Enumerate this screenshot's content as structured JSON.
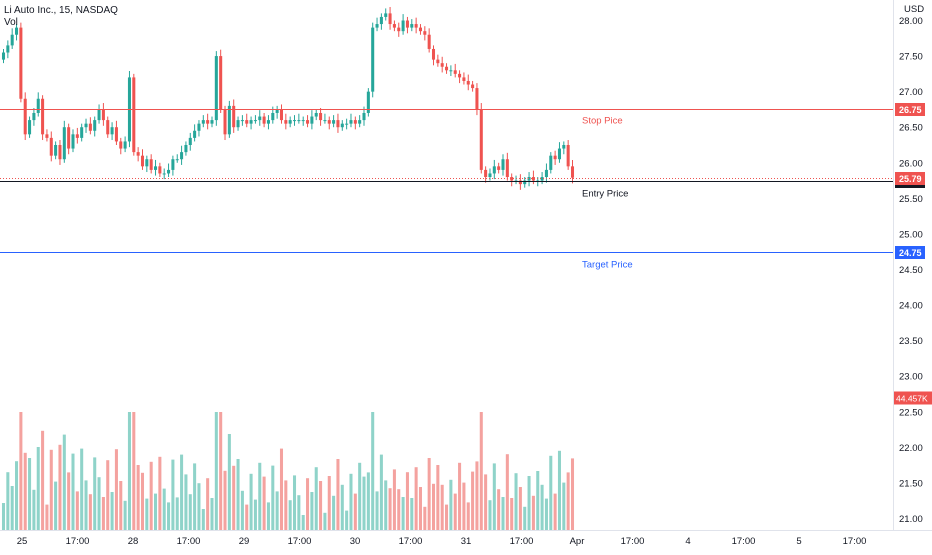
{
  "header": {
    "title": "Li Auto Inc., 15, NASDAQ",
    "vol_label": "Vol",
    "currency": "USD"
  },
  "colors": {
    "up": "#26a69a",
    "down": "#ef5350",
    "stop": "#ef5350",
    "entry": "#131722",
    "target": "#2962ff",
    "vol_up": "#8fd3c9",
    "vol_down": "#f4a29f",
    "axis_text": "#131722",
    "label_bg_dark": "#131722"
  },
  "chart_data": {
    "type": "candlestick",
    "title": "Li Auto Inc., 15, NASDAQ",
    "ylim": [
      20.9,
      28.15
    ],
    "y_ticks": [
      "28.00",
      "27.50",
      "27.00",
      "26.50",
      "26.00",
      "25.50",
      "25.00",
      "24.50",
      "24.00",
      "23.50",
      "23.00",
      "22.50",
      "22.00",
      "21.50",
      "21.00"
    ],
    "x_ticks": [
      "25",
      "17:00",
      "28",
      "17:00",
      "29",
      "17:00",
      "30",
      "17:00",
      "31",
      "17:00",
      "Apr",
      "17:00",
      "4",
      "17:00",
      "5",
      "17:00"
    ],
    "levels": [
      {
        "name": "Stop Pice",
        "value": 26.75,
        "label": "26.75"
      },
      {
        "name": "Entry Price",
        "value": 25.75,
        "label": "25.75"
      },
      {
        "name": "Target Price",
        "value": 24.75,
        "label": "24.75"
      }
    ],
    "last_price": {
      "value": 25.79,
      "label": "25.79"
    },
    "last_volume_label": "44.457K",
    "closes": [
      27.55,
      27.65,
      27.8,
      27.9,
      26.9,
      26.4,
      26.6,
      26.7,
      26.9,
      26.4,
      26.35,
      26.1,
      26.25,
      26.05,
      26.5,
      26.2,
      26.4,
      26.35,
      26.5,
      26.55,
      26.45,
      26.6,
      26.75,
      26.6,
      26.4,
      26.5,
      26.3,
      26.2,
      26.3,
      27.2,
      26.15,
      26.1,
      25.95,
      26.05,
      25.9,
      25.95,
      25.85,
      25.85,
      25.9,
      26.05,
      26.05,
      26.15,
      26.25,
      26.35,
      26.45,
      26.55,
      26.6,
      26.55,
      26.6,
      27.5,
      26.75,
      26.4,
      26.8,
      26.5,
      26.6,
      26.6,
      26.55,
      26.6,
      26.6,
      26.65,
      26.55,
      26.6,
      26.7,
      26.75,
      26.6,
      26.55,
      26.6,
      26.6,
      26.6,
      26.6,
      26.55,
      26.65,
      26.7,
      26.6,
      26.6,
      26.55,
      26.6,
      26.5,
      26.55,
      26.55,
      26.6,
      26.55,
      26.6,
      26.7,
      27.0,
      27.9,
      27.95,
      28.05,
      28.1,
      27.95,
      27.9,
      27.85,
      28.0,
      27.9,
      27.95,
      27.9,
      27.85,
      27.8,
      27.6,
      27.45,
      27.4,
      27.35,
      27.3,
      27.3,
      27.25,
      27.2,
      27.15,
      27.1,
      27.05,
      26.75,
      25.9,
      25.8,
      25.85,
      25.95,
      25.9,
      26.05,
      25.8,
      25.75,
      25.75,
      25.7,
      25.75,
      25.8,
      25.75,
      25.75,
      25.8,
      25.9,
      26.1,
      26.05,
      26.2,
      26.25,
      25.95,
      25.79
    ]
  }
}
